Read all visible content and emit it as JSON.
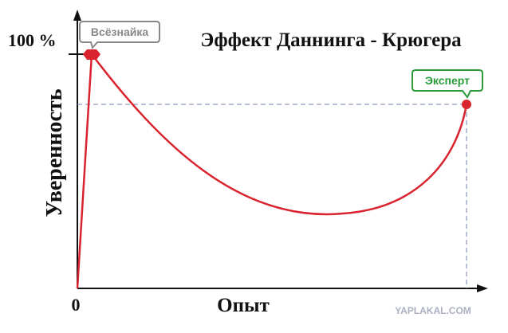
{
  "title": "Эффект Даннинга - Крюгера",
  "axes": {
    "y_label": "Уверенность",
    "x_label": "Опыт",
    "y_top": "100 %",
    "origin": "0"
  },
  "callouts": {
    "novice": "Всёзнайка",
    "expert": "Эксперт"
  },
  "watermark": "YAPLAKAL.COM"
}
